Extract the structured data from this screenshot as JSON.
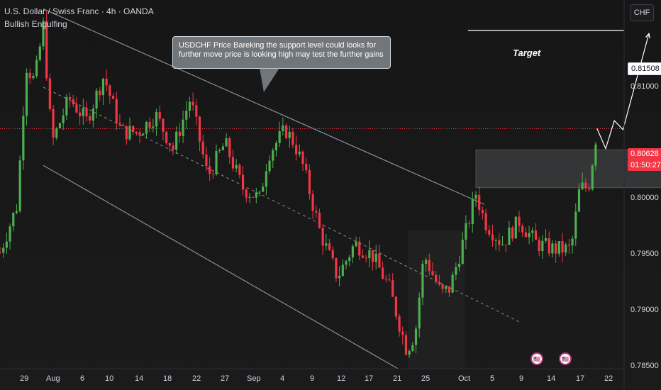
{
  "header": {
    "title": "U.S. Dollar / Swiss Franc · 4h · OANDA",
    "indicator": "Bullish Engulfing",
    "currency_button": "CHF"
  },
  "annotations": {
    "callout_text": "USDCHF Price Bareking the support level could looks for further move price is looking high may test the further gains",
    "target_label": "Target"
  },
  "price_tags": {
    "target": "0.81508",
    "current_price": "0.80628",
    "countdown": "01:50:27"
  },
  "colors": {
    "bullish": "#26a69a",
    "bullish_candle": "#4caf50",
    "bearish": "#f23645",
    "background": "#161616",
    "channel": "#8a8d93",
    "zone": "#3a3d44"
  },
  "chart_data": {
    "type": "candlestick",
    "symbol": "USDCHF",
    "timeframe": "4h",
    "y_ticks": [
      "0.81000",
      "0.80000",
      "0.79500",
      "0.79000",
      "0.78500"
    ],
    "ylim": [
      0.7848,
      0.8178
    ],
    "x_ticks": [
      "29",
      "Aug",
      "6",
      "10",
      "14",
      "18",
      "22",
      "27",
      "Sep",
      "4",
      "9",
      "12",
      "17",
      "21",
      "25",
      "Oct",
      "5",
      "9",
      "14",
      "17",
      "22"
    ],
    "path": [
      {
        "day": 0,
        "price": 0.7952
      },
      {
        "day": 2,
        "price": 0.7995
      },
      {
        "day": 3,
        "price": 0.812
      },
      {
        "day": 4,
        "price": 0.8105
      },
      {
        "day": 5,
        "price": 0.8155
      },
      {
        "day": 6,
        "price": 0.805
      },
      {
        "day": 8,
        "price": 0.809
      },
      {
        "day": 10,
        "price": 0.807
      },
      {
        "day": 12,
        "price": 0.811
      },
      {
        "day": 14,
        "price": 0.806
      },
      {
        "day": 16,
        "price": 0.806
      },
      {
        "day": 18,
        "price": 0.8075
      },
      {
        "day": 20,
        "price": 0.8045
      },
      {
        "day": 22,
        "price": 0.809
      },
      {
        "day": 24,
        "price": 0.802
      },
      {
        "day": 26,
        "price": 0.805
      },
      {
        "day": 28,
        "price": 0.801
      },
      {
        "day": 30,
        "price": 0.8
      },
      {
        "day": 31,
        "price": 0.804
      },
      {
        "day": 33,
        "price": 0.8062
      },
      {
        "day": 34,
        "price": 0.805
      },
      {
        "day": 35,
        "price": 0.803
      },
      {
        "day": 37,
        "price": 0.797
      },
      {
        "day": 39,
        "price": 0.793
      },
      {
        "day": 41,
        "price": 0.796
      },
      {
        "day": 43,
        "price": 0.795
      },
      {
        "day": 45,
        "price": 0.792
      },
      {
        "day": 47,
        "price": 0.7865
      },
      {
        "day": 48,
        "price": 0.788
      },
      {
        "day": 49,
        "price": 0.795
      },
      {
        "day": 51,
        "price": 0.7915
      },
      {
        "day": 52,
        "price": 0.792
      },
      {
        "day": 54,
        "price": 0.7975
      },
      {
        "day": 55,
        "price": 0.8005
      },
      {
        "day": 56,
        "price": 0.798
      },
      {
        "day": 58,
        "price": 0.796
      },
      {
        "day": 60,
        "price": 0.798
      },
      {
        "day": 62,
        "price": 0.796
      },
      {
        "day": 64,
        "price": 0.7955
      },
      {
        "day": 66,
        "price": 0.7955
      },
      {
        "day": 67,
        "price": 0.801
      },
      {
        "day": 68,
        "price": 0.801
      },
      {
        "day": 69,
        "price": 0.8062
      }
    ],
    "channel": {
      "upper": [
        {
          "day": 5,
          "price": 0.817
        },
        {
          "day": 56,
          "price": 0.7995
        }
      ],
      "lower": [
        {
          "day": 5,
          "price": 0.803
        },
        {
          "day": 46,
          "price": 0.7848
        }
      ],
      "mid": [
        {
          "day": 5,
          "price": 0.81
        },
        {
          "day": 60,
          "price": 0.789
        }
      ]
    },
    "zone": {
      "day_start": 55,
      "day_end": 77,
      "price_high": 0.8044,
      "price_low": 0.801
    },
    "target_line": {
      "day_start": 54,
      "day_end": 78,
      "price": 0.81508
    },
    "current_price_line": 0.80628,
    "projection": [
      {
        "day": 69,
        "price": 0.8063
      },
      {
        "day": 70,
        "price": 0.8045
      },
      {
        "day": 71,
        "price": 0.807
      },
      {
        "day": 72,
        "price": 0.8062
      },
      {
        "day": 75,
        "price": 0.8148
      }
    ]
  }
}
